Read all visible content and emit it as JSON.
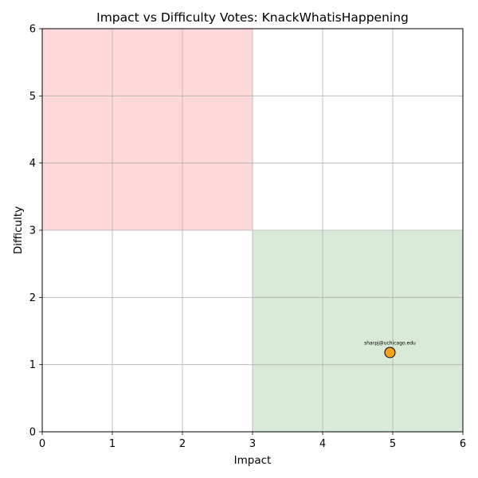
{
  "chart_data": {
    "type": "scatter",
    "title": "Impact vs Difficulty Votes: KnackWhatisHappening",
    "xlabel": "Impact",
    "ylabel": "Difficulty",
    "xlim": [
      0,
      6
    ],
    "ylim": [
      0,
      6
    ],
    "xticks": [
      "0",
      "1",
      "2",
      "3",
      "4",
      "5",
      "6"
    ],
    "yticks": [
      "0",
      "1",
      "2",
      "3",
      "4",
      "5",
      "6"
    ],
    "grid": true,
    "regions": [
      {
        "x": [
          0,
          3
        ],
        "y": [
          3,
          6
        ],
        "color": "#ffd9d9"
      },
      {
        "x": [
          3,
          6
        ],
        "y": [
          0,
          3
        ],
        "color": "#d9ead9"
      }
    ],
    "points": [
      {
        "x": 4.96,
        "y": 1.18,
        "label": "sharpj@uchicago.edu",
        "color": "#f5a31a"
      }
    ]
  }
}
